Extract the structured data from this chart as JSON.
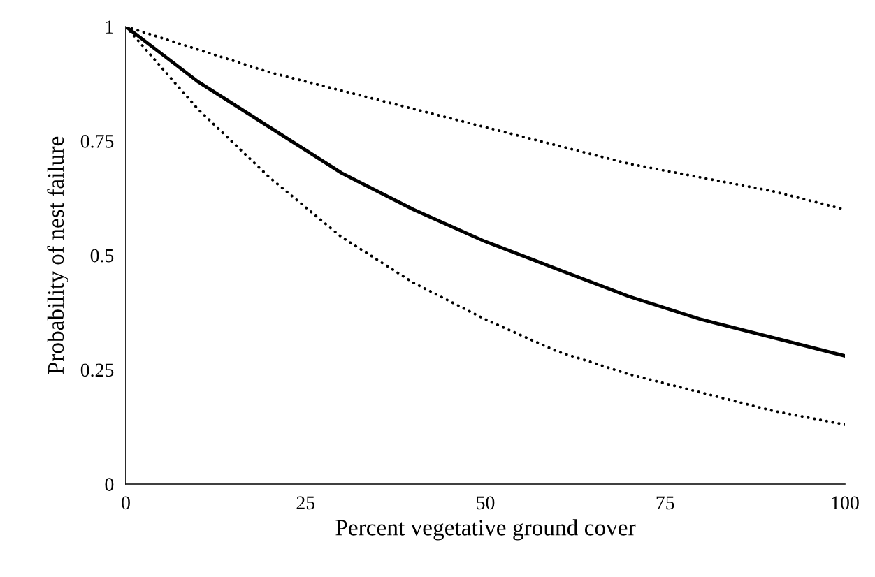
{
  "chart_data": {
    "type": "line",
    "xlabel": "Percent vegetative ground cover",
    "ylabel": "Probability of nest failure",
    "x": [
      0,
      10,
      20,
      30,
      40,
      50,
      60,
      70,
      80,
      90,
      100
    ],
    "series": [
      {
        "color": "#000000",
        "line_style": "solid",
        "values": [
          1.0,
          0.88,
          0.78,
          0.68,
          0.6,
          0.53,
          0.47,
          0.41,
          0.36,
          0.32,
          0.28
        ]
      },
      {
        "color": "#000000",
        "line_style": "dotted",
        "values": [
          1.0,
          0.95,
          0.9,
          0.86,
          0.82,
          0.78,
          0.74,
          0.7,
          0.67,
          0.64,
          0.6
        ]
      },
      {
        "color": "#000000",
        "line_style": "dotted",
        "values": [
          1.0,
          0.82,
          0.67,
          0.54,
          0.44,
          0.36,
          0.29,
          0.24,
          0.2,
          0.16,
          0.13
        ]
      }
    ],
    "xlim": [
      0,
      100
    ],
    "xticks": [
      0,
      25,
      50,
      75,
      100
    ],
    "ylim": [
      0,
      1
    ],
    "yticks": [
      0,
      0.25,
      0.5,
      0.75,
      1
    ],
    "grid": false,
    "marker": "none"
  }
}
